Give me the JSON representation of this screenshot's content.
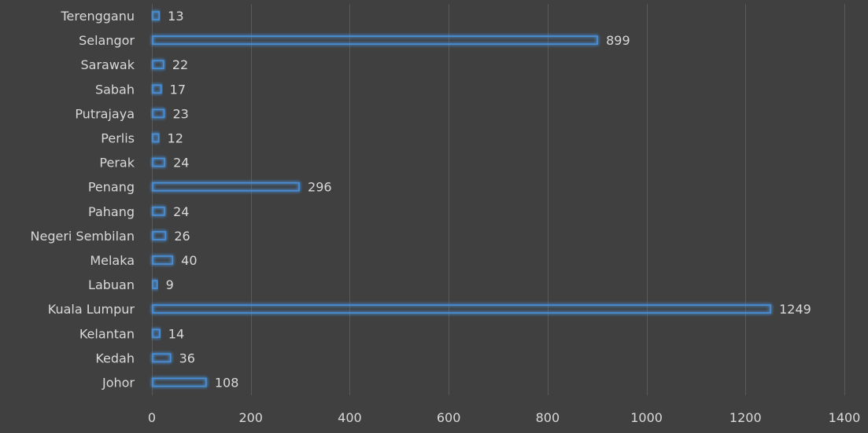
{
  "chart_data": {
    "type": "bar",
    "orientation": "horizontal",
    "categories": [
      "Terengganu",
      "Selangor",
      "Sarawak",
      "Sabah",
      "Putrajaya",
      "Perlis",
      "Perak",
      "Penang",
      "Pahang",
      "Negeri Sembilan",
      "Melaka",
      "Labuan",
      "Kuala Lumpur",
      "Kelantan",
      "Kedah",
      "Johor"
    ],
    "values": [
      13,
      899,
      22,
      17,
      23,
      12,
      24,
      296,
      24,
      26,
      40,
      9,
      1249,
      14,
      36,
      108
    ],
    "xlim": [
      0,
      1400
    ],
    "xticks": [
      0,
      200,
      400,
      600,
      800,
      1000,
      1200,
      1400
    ],
    "grid": true,
    "data_labels": true,
    "colors": {
      "background": "#404040",
      "bar_outline": "#4a90d9",
      "bar_glow": "#2f6fb5",
      "grid": "#5a5a5a",
      "text": "#d9d9d9"
    }
  }
}
